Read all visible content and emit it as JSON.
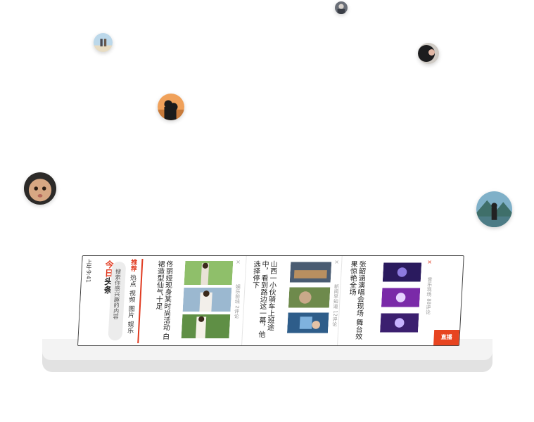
{
  "phone": {
    "status_time": "上午9:41",
    "logo_red": "今日",
    "logo_dark": "头条",
    "search_placeholder": "搜索你感兴趣的内容",
    "tabs": [
      {
        "label": "推荐",
        "active": true
      },
      {
        "label": "热点",
        "active": false
      },
      {
        "label": "视频",
        "active": false
      },
      {
        "label": "图片",
        "active": false
      },
      {
        "label": "娱乐",
        "active": false
      }
    ],
    "articles": [
      {
        "headline": "佟丽娅现身某时尚活动 白裙造型仙气十足",
        "meta": "娱乐前线 2评论"
      },
      {
        "headline": "山西一小伙骑车上班途中，看到路边这一幕，他选择停下",
        "meta": "新闻早知道 12评论"
      },
      {
        "headline": "张韶涵演唱会现场 舞台效果惊艳全场",
        "meta": "音乐现场 88评论"
      }
    ],
    "live_badge": "直播",
    "accent": "#e03a20"
  }
}
